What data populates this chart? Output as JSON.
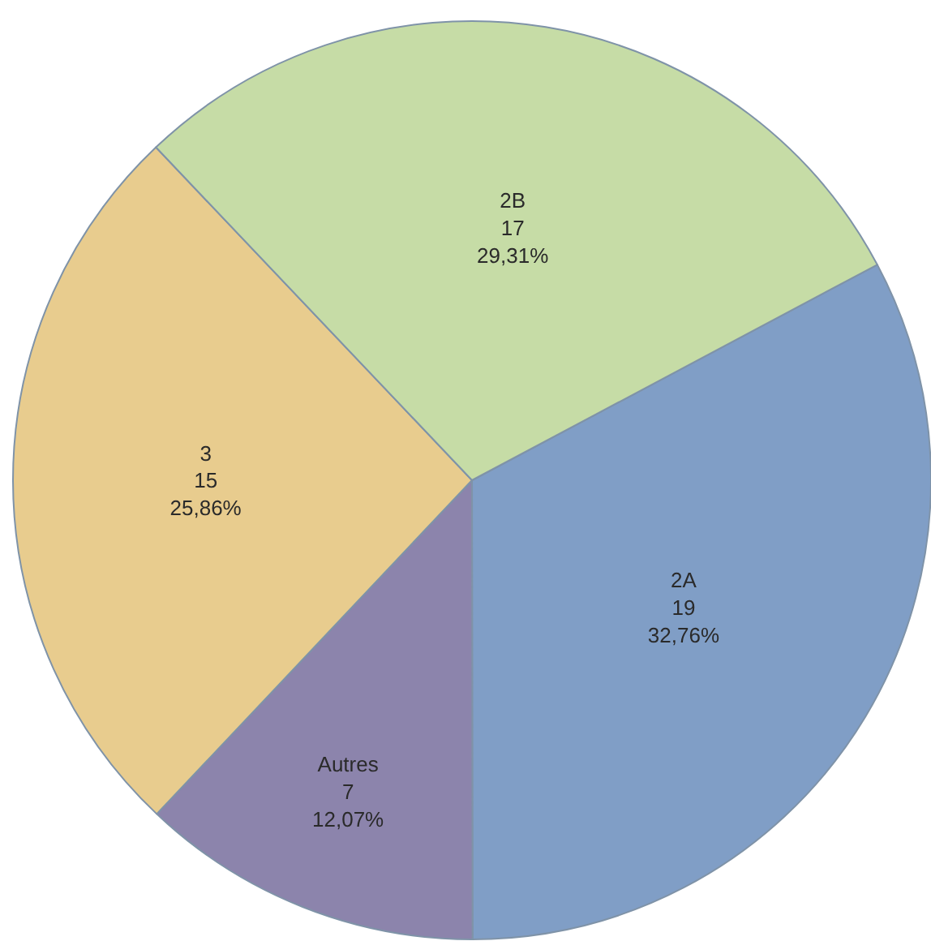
{
  "chart_data": {
    "type": "pie",
    "categories": [
      "2A",
      "Autres",
      "3",
      "2B"
    ],
    "values": [
      19,
      7,
      15,
      17
    ],
    "value_labels": [
      "19\n32,76%",
      "7\n12,07%",
      "15\n25,86%",
      "17\n29,31%"
    ],
    "colors": [
      "#809ec6",
      "#8c84ac",
      "#e8cc8e",
      "#c6dca6"
    ],
    "legend": false
  }
}
